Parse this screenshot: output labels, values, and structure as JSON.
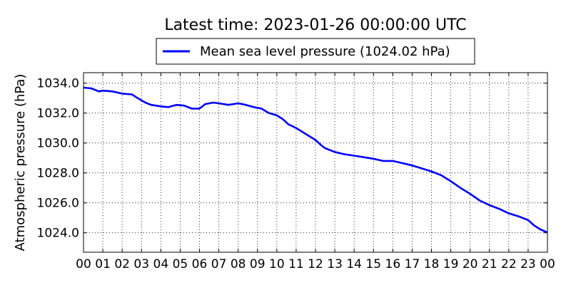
{
  "chart_data": {
    "type": "line",
    "title": "Latest time: 2023-01-26 00:00:00 UTC",
    "ylabel": "Atmospheric pressure (hPa)",
    "xlabel": "",
    "legend": {
      "position": "top-center",
      "entries": [
        "Mean sea level pressure (1024.02 hPa)"
      ]
    },
    "grid": true,
    "xlim": [
      0,
      24
    ],
    "ylim": [
      1022.7,
      1034.7
    ],
    "x_tick_values": [
      0,
      1,
      2,
      3,
      4,
      5,
      6,
      7,
      8,
      9,
      10,
      11,
      12,
      13,
      14,
      15,
      16,
      17,
      18,
      19,
      20,
      21,
      22,
      23,
      24
    ],
    "x_tick_labels": [
      "00",
      "01",
      "02",
      "03",
      "04",
      "05",
      "06",
      "07",
      "08",
      "09",
      "10",
      "11",
      "12",
      "13",
      "14",
      "15",
      "16",
      "17",
      "18",
      "19",
      "20",
      "21",
      "22",
      "23",
      "00"
    ],
    "y_tick_values": [
      1024,
      1026,
      1028,
      1030,
      1032,
      1034
    ],
    "y_tick_labels": [
      "1024.0",
      "1026.0",
      "1028.0",
      "1030.0",
      "1032.0",
      "1034.0"
    ],
    "series": [
      {
        "name": "Mean sea level pressure (1024.02 hPa)",
        "color": "#0000ff",
        "x": [
          0,
          0.4,
          0.8,
          1.0,
          1.5,
          2.0,
          2.5,
          2.8,
          3.2,
          3.5,
          4.0,
          4.4,
          4.8,
          5.2,
          5.6,
          6.0,
          6.3,
          6.7,
          7.0,
          7.5,
          8.0,
          8.4,
          8.8,
          9.2,
          9.6,
          10.0,
          10.3,
          10.6,
          11.0,
          11.5,
          12.0,
          12.3,
          12.5,
          12.8,
          13.0,
          13.5,
          14.0,
          14.5,
          15.0,
          15.5,
          16.0,
          16.5,
          17.0,
          17.5,
          18.0,
          18.5,
          19.0,
          19.5,
          20.0,
          20.5,
          21.0,
          21.5,
          22.0,
          22.5,
          23.0,
          23.3,
          23.6,
          24.0
        ],
        "y": [
          1033.7,
          1033.65,
          1033.45,
          1033.5,
          1033.45,
          1033.3,
          1033.25,
          1033.0,
          1032.7,
          1032.55,
          1032.45,
          1032.4,
          1032.55,
          1032.5,
          1032.3,
          1032.3,
          1032.6,
          1032.7,
          1032.65,
          1032.55,
          1032.65,
          1032.55,
          1032.4,
          1032.3,
          1032.0,
          1031.85,
          1031.6,
          1031.25,
          1031.0,
          1030.6,
          1030.2,
          1029.85,
          1029.65,
          1029.5,
          1029.4,
          1029.25,
          1029.15,
          1029.05,
          1028.95,
          1028.8,
          1028.8,
          1028.65,
          1028.5,
          1028.3,
          1028.1,
          1027.85,
          1027.45,
          1027.0,
          1026.6,
          1026.15,
          1025.85,
          1025.6,
          1025.3,
          1025.1,
          1024.85,
          1024.5,
          1024.25,
          1024.02
        ]
      }
    ]
  }
}
